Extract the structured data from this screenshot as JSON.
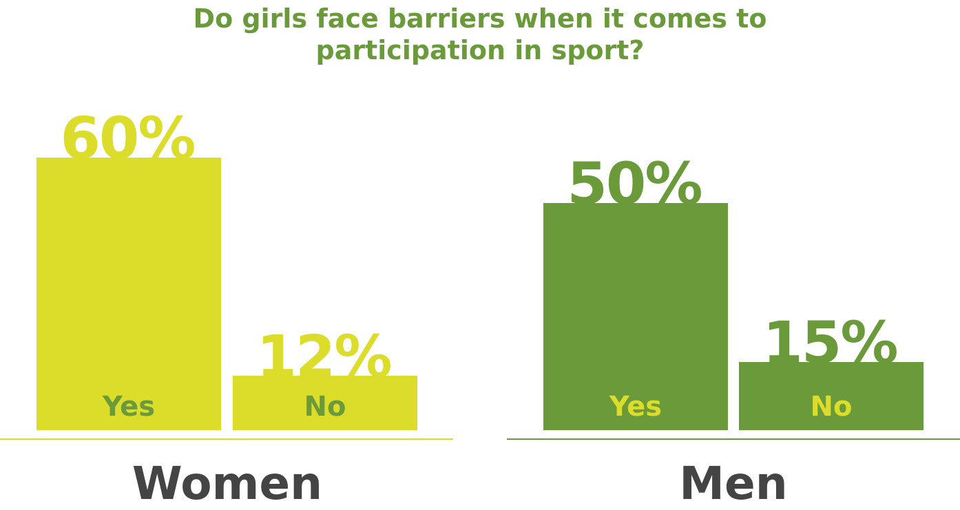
{
  "title_lines": [
    "Do girls face barriers when it comes to",
    "participation in sport?"
  ],
  "colors": {
    "title": "#6a9a3a",
    "women": "#dcdc2a",
    "men": "#6a9a3a",
    "group_label": "#444444"
  },
  "chart_data": [
    {
      "type": "bar",
      "group_label": "Women",
      "categories": [
        "Yes",
        "No"
      ],
      "values": [
        60,
        12
      ],
      "value_labels": [
        "60%",
        "12%"
      ],
      "unit": "%",
      "bar_color": "#dcdc2a",
      "label_color": "#6a9a3a"
    },
    {
      "type": "bar",
      "group_label": "Men",
      "categories": [
        "Yes",
        "No"
      ],
      "values": [
        50,
        15
      ],
      "value_labels": [
        "50%",
        "15%"
      ],
      "unit": "%",
      "bar_color": "#6a9a3a",
      "label_color": "#dcdc2a"
    }
  ]
}
